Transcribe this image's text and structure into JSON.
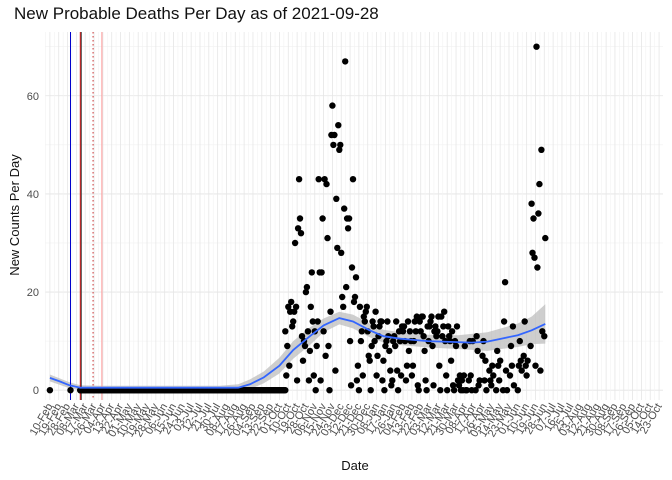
{
  "chart_data": {
    "type": "scatter",
    "title": "New Probable Deaths Per Day as of 2021-09-28",
    "xlabel": "Date",
    "ylabel": "New Counts Per Day",
    "ylim": [
      -2,
      73
    ],
    "yticks": [
      0,
      20,
      40,
      60
    ],
    "xrange": [
      "2020-02-05",
      "2021-10-27"
    ],
    "grid": true,
    "x_tick_labels": [
      "10-Feb",
      "19-Feb",
      "28-Feb",
      "08-Mar",
      "17-Mar",
      "26-Mar",
      "04-Apr",
      "13-Apr",
      "22-Apr",
      "01-May",
      "10-May",
      "19-May",
      "28-May",
      "06-Jun",
      "15-Jun",
      "24-Jun",
      "03-Jul",
      "12-Jul",
      "21-Jul",
      "30-Jul",
      "08-Aug",
      "17-Aug",
      "26-Aug",
      "04-Sep",
      "13-Sep",
      "22-Sep",
      "01-Oct",
      "10-Oct",
      "19-Oct",
      "28-Oct",
      "06-Nov",
      "15-Nov",
      "24-Nov",
      "03-Dec",
      "12-Dec",
      "21-Dec",
      "30-Dec",
      "08-Jan",
      "17-Jan",
      "26-Jan",
      "04-Feb",
      "13-Feb",
      "22-Feb",
      "03-Mar",
      "12-Mar",
      "21-Mar",
      "30-Mar",
      "08-Apr",
      "17-Apr",
      "26-Apr",
      "05-May",
      "14-May",
      "23-May",
      "01-Jun",
      "10-Jun",
      "19-Jun",
      "28-Jun",
      "07-Jul",
      "16-Jul",
      "25-Jul",
      "03-Aug",
      "12-Aug",
      "21-Aug",
      "30-Aug",
      "08-Sep",
      "17-Sep",
      "26-Sep",
      "05-Oct",
      "14-Oct",
      "23-Oct"
    ],
    "reference_lines": [
      {
        "date": "2020-03-02",
        "color": "#0000cc",
        "style": "solid"
      },
      {
        "date": "2020-03-12",
        "color": "#cc0000",
        "style": "solid"
      },
      {
        "date": "2020-03-13",
        "color": "#444444",
        "style": "solid"
      },
      {
        "date": "2020-03-25",
        "color": "#cc3333",
        "style": "dotted"
      },
      {
        "date": "2020-04-03",
        "color": "#ff9999",
        "style": "solid"
      }
    ],
    "point_color": "#000000",
    "smooth_color": "#3366ff",
    "band_color": "#bdbdbd",
    "points": [
      [
        "2020-02-10",
        0
      ],
      [
        "2020-03-02",
        0
      ],
      [
        "2020-03-12",
        0
      ],
      [
        "2020-10-07",
        12
      ],
      [
        "2020-10-08",
        3
      ],
      [
        "2020-10-09",
        9
      ],
      [
        "2020-10-10",
        17
      ],
      [
        "2020-10-11",
        5
      ],
      [
        "2020-10-12",
        16
      ],
      [
        "2020-10-13",
        18
      ],
      [
        "2020-10-14",
        13
      ],
      [
        "2020-10-15",
        14
      ],
      [
        "2020-10-16",
        16
      ],
      [
        "2020-10-17",
        30
      ],
      [
        "2020-10-18",
        17
      ],
      [
        "2020-10-19",
        2
      ],
      [
        "2020-10-20",
        33
      ],
      [
        "2020-10-21",
        43
      ],
      [
        "2020-10-22",
        35
      ],
      [
        "2020-10-23",
        32
      ],
      [
        "2020-10-24",
        11
      ],
      [
        "2020-10-25",
        6
      ],
      [
        "2020-10-26",
        10
      ],
      [
        "2020-10-27",
        9
      ],
      [
        "2020-10-28",
        20
      ],
      [
        "2020-10-29",
        21
      ],
      [
        "2020-10-30",
        12
      ],
      [
        "2020-10-31",
        2
      ],
      [
        "2020-11-01",
        8
      ],
      [
        "2020-11-02",
        17
      ],
      [
        "2020-11-03",
        24
      ],
      [
        "2020-11-04",
        14
      ],
      [
        "2020-11-05",
        3
      ],
      [
        "2020-11-06",
        12
      ],
      [
        "2020-11-07",
        0
      ],
      [
        "2020-11-08",
        9
      ],
      [
        "2020-11-09",
        14
      ],
      [
        "2020-11-10",
        43
      ],
      [
        "2020-11-11",
        24
      ],
      [
        "2020-11-12",
        2
      ],
      [
        "2020-11-13",
        24
      ],
      [
        "2020-11-14",
        35
      ],
      [
        "2020-11-15",
        12
      ],
      [
        "2020-11-16",
        43
      ],
      [
        "2020-11-17",
        7
      ],
      [
        "2020-11-18",
        42
      ],
      [
        "2020-11-19",
        31
      ],
      [
        "2020-11-20",
        9
      ],
      [
        "2020-11-21",
        0
      ],
      [
        "2020-11-22",
        16
      ],
      [
        "2020-11-23",
        52
      ],
      [
        "2020-11-24",
        58
      ],
      [
        "2020-11-25",
        50
      ],
      [
        "2020-11-26",
        52
      ],
      [
        "2020-11-27",
        4
      ],
      [
        "2020-11-28",
        39
      ],
      [
        "2020-11-29",
        29
      ],
      [
        "2020-11-30",
        54
      ],
      [
        "2020-12-01",
        49
      ],
      [
        "2020-12-02",
        50
      ],
      [
        "2020-12-03",
        28
      ],
      [
        "2020-12-04",
        19
      ],
      [
        "2020-12-05",
        17
      ],
      [
        "2020-12-06",
        37
      ],
      [
        "2020-12-07",
        67
      ],
      [
        "2020-12-08",
        21
      ],
      [
        "2020-12-09",
        35
      ],
      [
        "2020-12-10",
        33
      ],
      [
        "2020-12-11",
        35
      ],
      [
        "2020-12-12",
        10
      ],
      [
        "2020-12-13",
        1
      ],
      [
        "2020-12-14",
        25
      ],
      [
        "2020-12-15",
        43
      ],
      [
        "2020-12-16",
        18
      ],
      [
        "2020-12-17",
        19
      ],
      [
        "2020-12-18",
        23
      ],
      [
        "2020-12-19",
        2
      ],
      [
        "2020-12-20",
        5
      ],
      [
        "2020-12-21",
        0
      ],
      [
        "2020-12-22",
        17
      ],
      [
        "2020-12-23",
        10
      ],
      [
        "2020-12-24",
        12
      ],
      [
        "2020-12-25",
        3
      ],
      [
        "2020-12-26",
        15
      ],
      [
        "2020-12-27",
        14
      ],
      [
        "2020-12-28",
        16
      ],
      [
        "2020-12-29",
        17
      ],
      [
        "2020-12-30",
        12
      ],
      [
        "2020-12-31",
        7
      ],
      [
        "2021-01-01",
        6
      ],
      [
        "2021-01-02",
        0
      ],
      [
        "2021-01-03",
        9
      ],
      [
        "2021-01-04",
        14
      ],
      [
        "2021-01-05",
        13
      ],
      [
        "2021-01-06",
        10
      ],
      [
        "2021-01-07",
        16
      ],
      [
        "2021-01-08",
        3
      ],
      [
        "2021-01-09",
        7
      ],
      [
        "2021-01-10",
        11
      ],
      [
        "2021-01-11",
        13
      ],
      [
        "2021-01-12",
        14
      ],
      [
        "2021-01-13",
        14
      ],
      [
        "2021-01-14",
        2
      ],
      [
        "2021-01-15",
        6
      ],
      [
        "2021-01-16",
        0
      ],
      [
        "2021-01-17",
        9
      ],
      [
        "2021-01-18",
        10
      ],
      [
        "2021-01-19",
        14
      ],
      [
        "2021-01-20",
        11
      ],
      [
        "2021-01-21",
        8
      ],
      [
        "2021-01-22",
        4
      ],
      [
        "2021-01-23",
        1
      ],
      [
        "2021-01-24",
        2
      ],
      [
        "2021-01-25",
        10
      ],
      [
        "2021-01-26",
        11
      ],
      [
        "2021-01-27",
        9
      ],
      [
        "2021-01-28",
        14
      ],
      [
        "2021-01-29",
        4
      ],
      [
        "2021-01-30",
        0
      ],
      [
        "2021-01-31",
        12
      ],
      [
        "2021-02-01",
        10
      ],
      [
        "2021-02-02",
        3
      ],
      [
        "2021-02-03",
        13
      ],
      [
        "2021-02-04",
        12
      ],
      [
        "2021-02-05",
        13
      ],
      [
        "2021-02-06",
        10
      ],
      [
        "2021-02-07",
        2
      ],
      [
        "2021-02-08",
        5
      ],
      [
        "2021-02-09",
        14
      ],
      [
        "2021-02-10",
        8
      ],
      [
        "2021-02-11",
        12
      ],
      [
        "2021-02-12",
        10
      ],
      [
        "2021-02-13",
        3
      ],
      [
        "2021-02-14",
        5
      ],
      [
        "2021-02-15",
        10
      ],
      [
        "2021-02-16",
        14
      ],
      [
        "2021-02-17",
        12
      ],
      [
        "2021-02-18",
        15
      ],
      [
        "2021-02-19",
        1
      ],
      [
        "2021-02-20",
        0
      ],
      [
        "2021-02-21",
        14
      ],
      [
        "2021-02-22",
        12
      ],
      [
        "2021-02-23",
        15
      ],
      [
        "2021-02-24",
        15
      ],
      [
        "2021-02-25",
        11
      ],
      [
        "2021-02-26",
        8
      ],
      [
        "2021-02-27",
        2
      ],
      [
        "2021-02-28",
        0
      ],
      [
        "2021-03-01",
        13
      ],
      [
        "2021-03-02",
        10
      ],
      [
        "2021-03-03",
        13
      ],
      [
        "2021-03-04",
        14
      ],
      [
        "2021-03-05",
        15
      ],
      [
        "2021-03-06",
        9
      ],
      [
        "2021-03-07",
        1
      ],
      [
        "2021-03-08",
        12
      ],
      [
        "2021-03-09",
        13
      ],
      [
        "2021-03-10",
        11
      ],
      [
        "2021-03-11",
        12
      ],
      [
        "2021-03-12",
        15
      ],
      [
        "2021-03-13",
        5
      ],
      [
        "2021-03-14",
        0
      ],
      [
        "2021-03-15",
        15
      ],
      [
        "2021-03-16",
        11
      ],
      [
        "2021-03-17",
        13
      ],
      [
        "2021-03-18",
        16
      ],
      [
        "2021-03-19",
        10
      ],
      [
        "2021-03-20",
        3
      ],
      [
        "2021-03-21",
        0
      ],
      [
        "2021-03-22",
        13
      ],
      [
        "2021-03-23",
        11
      ],
      [
        "2021-03-24",
        10
      ],
      [
        "2021-03-25",
        6
      ],
      [
        "2021-03-26",
        12
      ],
      [
        "2021-03-27",
        1
      ],
      [
        "2021-03-28",
        0
      ],
      [
        "2021-03-29",
        10
      ],
      [
        "2021-03-30",
        9
      ],
      [
        "2021-03-31",
        13
      ],
      [
        "2021-04-01",
        2
      ],
      [
        "2021-04-02",
        1
      ],
      [
        "2021-04-03",
        3
      ],
      [
        "2021-04-04",
        0
      ],
      [
        "2021-04-05",
        2
      ],
      [
        "2021-04-06",
        0
      ],
      [
        "2021-04-07",
        3
      ],
      [
        "2021-04-08",
        9
      ],
      [
        "2021-04-09",
        0
      ],
      [
        "2021-04-10",
        0
      ],
      [
        "2021-04-12",
        2
      ],
      [
        "2021-04-13",
        10
      ],
      [
        "2021-04-14",
        3
      ],
      [
        "2021-04-15",
        0
      ],
      [
        "2021-04-16",
        10
      ],
      [
        "2021-04-19",
        0
      ],
      [
        "2021-04-20",
        11
      ],
      [
        "2021-04-21",
        8
      ],
      [
        "2021-04-22",
        1
      ],
      [
        "2021-04-23",
        2
      ],
      [
        "2021-04-26",
        7
      ],
      [
        "2021-04-27",
        10
      ],
      [
        "2021-04-28",
        2
      ],
      [
        "2021-04-29",
        6
      ],
      [
        "2021-04-30",
        0
      ],
      [
        "2021-05-03",
        4
      ],
      [
        "2021-05-04",
        2
      ],
      [
        "2021-05-05",
        1
      ],
      [
        "2021-05-06",
        5
      ],
      [
        "2021-05-07",
        3
      ],
      [
        "2021-05-10",
        0
      ],
      [
        "2021-05-11",
        8
      ],
      [
        "2021-05-12",
        5
      ],
      [
        "2021-05-13",
        2
      ],
      [
        "2021-05-14",
        6
      ],
      [
        "2021-05-17",
        0
      ],
      [
        "2021-05-18",
        14
      ],
      [
        "2021-05-19",
        22
      ],
      [
        "2021-05-20",
        4
      ],
      [
        "2021-05-21",
        0
      ],
      [
        "2021-05-24",
        3
      ],
      [
        "2021-05-25",
        9
      ],
      [
        "2021-05-26",
        5
      ],
      [
        "2021-05-27",
        13
      ],
      [
        "2021-05-28",
        1
      ],
      [
        "2021-06-01",
        0
      ],
      [
        "2021-06-02",
        5
      ],
      [
        "2021-06-03",
        10
      ],
      [
        "2021-06-04",
        6
      ],
      [
        "2021-06-05",
        4
      ],
      [
        "2021-06-07",
        7
      ],
      [
        "2021-06-08",
        14
      ],
      [
        "2021-06-09",
        5
      ],
      [
        "2021-06-10",
        3
      ],
      [
        "2021-06-11",
        6
      ],
      [
        "2021-06-14",
        9
      ],
      [
        "2021-06-15",
        38
      ],
      [
        "2021-06-16",
        28
      ],
      [
        "2021-06-17",
        35
      ],
      [
        "2021-06-18",
        27
      ],
      [
        "2021-06-19",
        5
      ],
      [
        "2021-06-20",
        70
      ],
      [
        "2021-06-21",
        25
      ],
      [
        "2021-06-22",
        36
      ],
      [
        "2021-06-23",
        42
      ],
      [
        "2021-06-24",
        4
      ],
      [
        "2021-06-25",
        49
      ],
      [
        "2021-06-26",
        12
      ],
      [
        "2021-06-28",
        11
      ],
      [
        "2021-06-29",
        31
      ]
    ],
    "smooth": [
      [
        "2020-02-10",
        2.5
      ],
      [
        "2020-02-20",
        1.8
      ],
      [
        "2020-03-01",
        1.0
      ],
      [
        "2020-03-12",
        0.5
      ],
      [
        "2020-04-01",
        0.5
      ],
      [
        "2020-05-01",
        0.5
      ],
      [
        "2020-06-01",
        0.5
      ],
      [
        "2020-07-01",
        0.5
      ],
      [
        "2020-08-01",
        0.5
      ],
      [
        "2020-08-20",
        0.5
      ],
      [
        "2020-09-01",
        1.2
      ],
      [
        "2020-09-15",
        2.6
      ],
      [
        "2020-10-01",
        5.0
      ],
      [
        "2020-10-15",
        8.2
      ],
      [
        "2020-11-01",
        11.0
      ],
      [
        "2020-11-15",
        13.2
      ],
      [
        "2020-12-01",
        14.7
      ],
      [
        "2020-12-15",
        14.0
      ],
      [
        "2021-01-01",
        12.2
      ],
      [
        "2021-01-15",
        11.0
      ],
      [
        "2021-02-01",
        10.5
      ],
      [
        "2021-03-01",
        10.0
      ],
      [
        "2021-04-01",
        9.8
      ],
      [
        "2021-04-15",
        9.7
      ],
      [
        "2021-05-01",
        9.9
      ],
      [
        "2021-05-15",
        10.5
      ],
      [
        "2021-06-01",
        11.2
      ],
      [
        "2021-06-15",
        12.2
      ],
      [
        "2021-06-29",
        13.5
      ]
    ],
    "band_upper": [
      [
        "2020-02-10",
        3.2
      ],
      [
        "2020-03-01",
        1.6
      ],
      [
        "2020-03-12",
        1.0
      ],
      [
        "2020-04-01",
        0.9
      ],
      [
        "2020-06-01",
        0.9
      ],
      [
        "2020-08-01",
        0.9
      ],
      [
        "2020-08-20",
        1.2
      ],
      [
        "2020-09-01",
        2.2
      ],
      [
        "2020-09-15",
        3.8
      ],
      [
        "2020-10-01",
        6.6
      ],
      [
        "2020-10-15",
        10.0
      ],
      [
        "2020-11-01",
        12.8
      ],
      [
        "2020-11-15",
        14.6
      ],
      [
        "2020-12-01",
        16.0
      ],
      [
        "2020-12-15",
        15.4
      ],
      [
        "2021-01-01",
        13.6
      ],
      [
        "2021-01-15",
        12.3
      ],
      [
        "2021-02-01",
        11.8
      ],
      [
        "2021-03-01",
        11.3
      ],
      [
        "2021-04-01",
        11.2
      ],
      [
        "2021-05-01",
        11.8
      ],
      [
        "2021-05-15",
        12.6
      ],
      [
        "2021-06-01",
        13.6
      ],
      [
        "2021-06-15",
        15.0
      ],
      [
        "2021-06-29",
        17.5
      ]
    ],
    "band_lower": [
      [
        "2020-02-10",
        1.8
      ],
      [
        "2020-03-01",
        0.4
      ],
      [
        "2020-03-12",
        0.0
      ],
      [
        "2020-04-01",
        0.1
      ],
      [
        "2020-06-01",
        0.1
      ],
      [
        "2020-08-01",
        0.1
      ],
      [
        "2020-08-20",
        -0.2
      ],
      [
        "2020-09-01",
        0.2
      ],
      [
        "2020-09-15",
        1.4
      ],
      [
        "2020-10-01",
        3.4
      ],
      [
        "2020-10-15",
        6.4
      ],
      [
        "2020-11-01",
        9.2
      ],
      [
        "2020-11-15",
        11.8
      ],
      [
        "2020-12-01",
        13.4
      ],
      [
        "2020-12-15",
        12.6
      ],
      [
        "2021-01-01",
        10.8
      ],
      [
        "2021-01-15",
        9.7
      ],
      [
        "2021-02-01",
        9.2
      ],
      [
        "2021-03-01",
        8.7
      ],
      [
        "2021-04-01",
        8.4
      ],
      [
        "2021-05-01",
        8.0
      ],
      [
        "2021-05-15",
        8.4
      ],
      [
        "2021-06-01",
        8.8
      ],
      [
        "2021-06-15",
        9.4
      ],
      [
        "2021-06-29",
        9.5
      ]
    ]
  }
}
